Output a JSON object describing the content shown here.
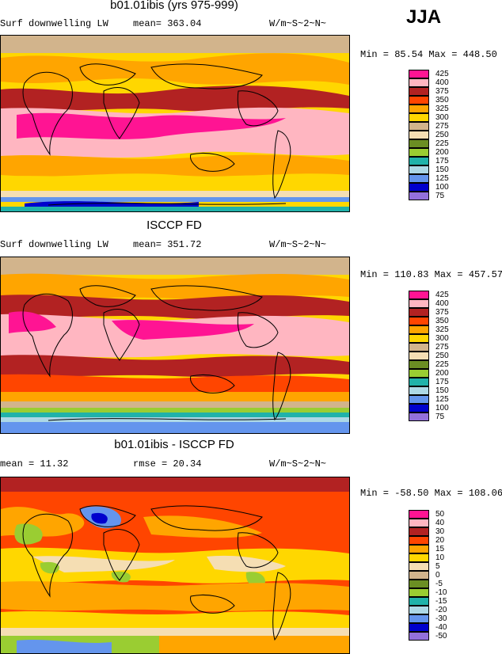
{
  "season": "JJA",
  "units": "W/m~S~2~N~",
  "panels": [
    {
      "title": "b01.01ibis (yrs 975-999)",
      "field": "Surf downwelling LW",
      "stat": "mean= 363.04",
      "minmax": "Min =  85.54 Max = 448.50"
    },
    {
      "title": "ISCCP FD",
      "field": "Surf downwelling LW",
      "stat": "mean= 351.72",
      "minmax": "Min = 110.83 Max = 457.57"
    },
    {
      "title": "b01.01ibis - ISCCP FD",
      "stat_mean": "mean =  11.32",
      "stat_rmse": "rmse =  20.34",
      "minmax": "Min = -58.50 Max = 108.06"
    }
  ],
  "colorbar_abs": {
    "labels": [
      "425",
      "400",
      "375",
      "350",
      "325",
      "300",
      "275",
      "250",
      "225",
      "200",
      "175",
      "150",
      "125",
      "100",
      "75"
    ],
    "colors": [
      "#ff1493",
      "#ffb6c1",
      "#b22222",
      "#ff4500",
      "#ffa500",
      "#ffd700",
      "#d2b48c",
      "#f5deb3",
      "#6b8e23",
      "#9acd32",
      "#20b2aa",
      "#add8e6",
      "#6495ed",
      "#0000cd",
      "#9370db"
    ]
  },
  "colorbar_diff": {
    "labels": [
      "50",
      "40",
      "30",
      "20",
      "15",
      "10",
      "5",
      "0",
      "-5",
      "-10",
      "-15",
      "-20",
      "-30",
      "-40",
      "-50"
    ],
    "colors": [
      "#ff1493",
      "#ffb6c1",
      "#b22222",
      "#ff4500",
      "#ffa500",
      "#ffd700",
      "#f5deb3",
      "#d2b48c",
      "#6b8e23",
      "#9acd32",
      "#20b2aa",
      "#add8e6",
      "#6495ed",
      "#0000cd",
      "#9370db"
    ]
  }
}
